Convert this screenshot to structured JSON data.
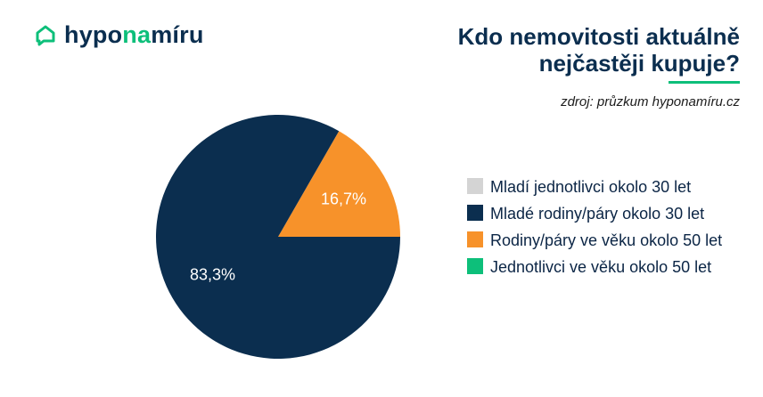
{
  "brand": {
    "name_part1": "hypo",
    "name_part2": "na",
    "name_part3": "míru",
    "logo_icon": "house-chat-icon",
    "accent_color": "#0dbf7a",
    "primary_color": "#0b2e4f"
  },
  "header": {
    "title_line1": "Kdo nemovitosti aktuálně",
    "title_line2": "nejčastěji kupuje?",
    "source": "zdroj: průzkum hyponamíru.cz"
  },
  "chart_data": {
    "type": "pie",
    "title": "Kdo nemovitosti aktuálně nejčastěji kupuje?",
    "categories": [
      "Mladí jednotlivci okolo 30 let",
      "Mladé rodiny/páry okolo 30 let",
      "Rodiny/páry ve věku okolo 50 let",
      "Jednotlivci ve věku okolo 50 let"
    ],
    "values": [
      0,
      83.3,
      16.7,
      0
    ],
    "data_labels": [
      "",
      "83,3%",
      "16,7%",
      ""
    ],
    "colors": [
      "#d4d4d4",
      "#0b2e4f",
      "#f7922a",
      "#0dbf7a"
    ],
    "legend_position": "right"
  }
}
